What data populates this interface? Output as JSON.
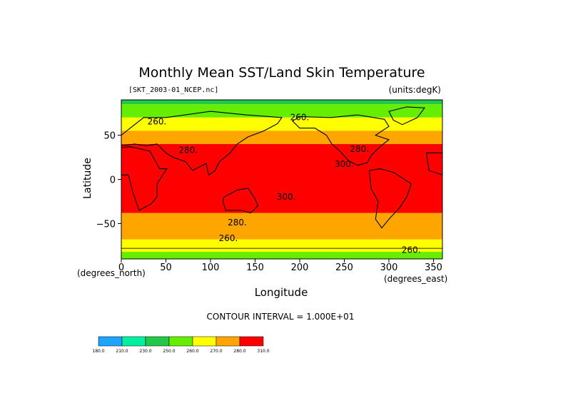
{
  "chart_data": {
    "type": "heatmap",
    "title": "Monthly Mean SST/Land Skin Temperature",
    "file_label": "[SKT_2003-01_NCEP.nc]",
    "units_label": "(units:degK)",
    "xlabel": "Longitude",
    "ylabel": "Latitude",
    "x_units_label": "(degrees_east)",
    "y_units_label": "(degrees_north)",
    "xlim": [
      0,
      360
    ],
    "ylim": [
      -90,
      90
    ],
    "x_ticks": [
      "0",
      "50",
      "100",
      "150",
      "200",
      "250",
      "300",
      "350"
    ],
    "y_ticks": [
      "50",
      "0",
      "−50"
    ],
    "x_tick_values": [
      0,
      50,
      100,
      150,
      200,
      250,
      300,
      350
    ],
    "y_tick_values": [
      50,
      0,
      -50
    ],
    "contour_interval_text": "CONTOUR INTERVAL = 1.000E+01",
    "contour_labels": [
      {
        "text": "260.",
        "lon": 40,
        "lat": 62
      },
      {
        "text": "260.",
        "lon": 200,
        "lat": 67
      },
      {
        "text": "280.",
        "lon": 75,
        "lat": 30
      },
      {
        "text": "280.",
        "lon": 267,
        "lat": 31
      },
      {
        "text": "300.",
        "lon": 250,
        "lat": 14
      },
      {
        "text": "300.",
        "lon": 185,
        "lat": -23
      },
      {
        "text": "280.",
        "lon": 130,
        "lat": -52
      },
      {
        "text": "260.",
        "lon": 120,
        "lat": -70
      },
      {
        "text": "260.",
        "lon": 325,
        "lat": -83
      }
    ],
    "legend": {
      "colors": [
        "#1ea3ff",
        "#00f0a0",
        "#22c84a",
        "#66ee00",
        "#ffff00",
        "#ffa500",
        "#ff0000"
      ],
      "labels": [
        "180.0",
        "210.0",
        "230.0",
        "250.0",
        "260.0",
        "270.0",
        "280.0",
        "310.0"
      ]
    },
    "bands": [
      {
        "lat_top": 90,
        "lat_bottom": 85,
        "color": "#22c84a"
      },
      {
        "lat_top": 85,
        "lat_bottom": 70,
        "color": "#66ee00"
      },
      {
        "lat_top": 70,
        "lat_bottom": 55,
        "color": "#ffff00"
      },
      {
        "lat_top": 55,
        "lat_bottom": 40,
        "color": "#ffa500"
      },
      {
        "lat_top": 40,
        "lat_bottom": -38,
        "color": "#ff0000"
      },
      {
        "lat_top": -38,
        "lat_bottom": -68,
        "color": "#ffa500"
      },
      {
        "lat_top": -68,
        "lat_bottom": -82,
        "color": "#ffff00"
      },
      {
        "lat_top": -82,
        "lat_bottom": -90,
        "color": "#66ee00"
      }
    ]
  }
}
